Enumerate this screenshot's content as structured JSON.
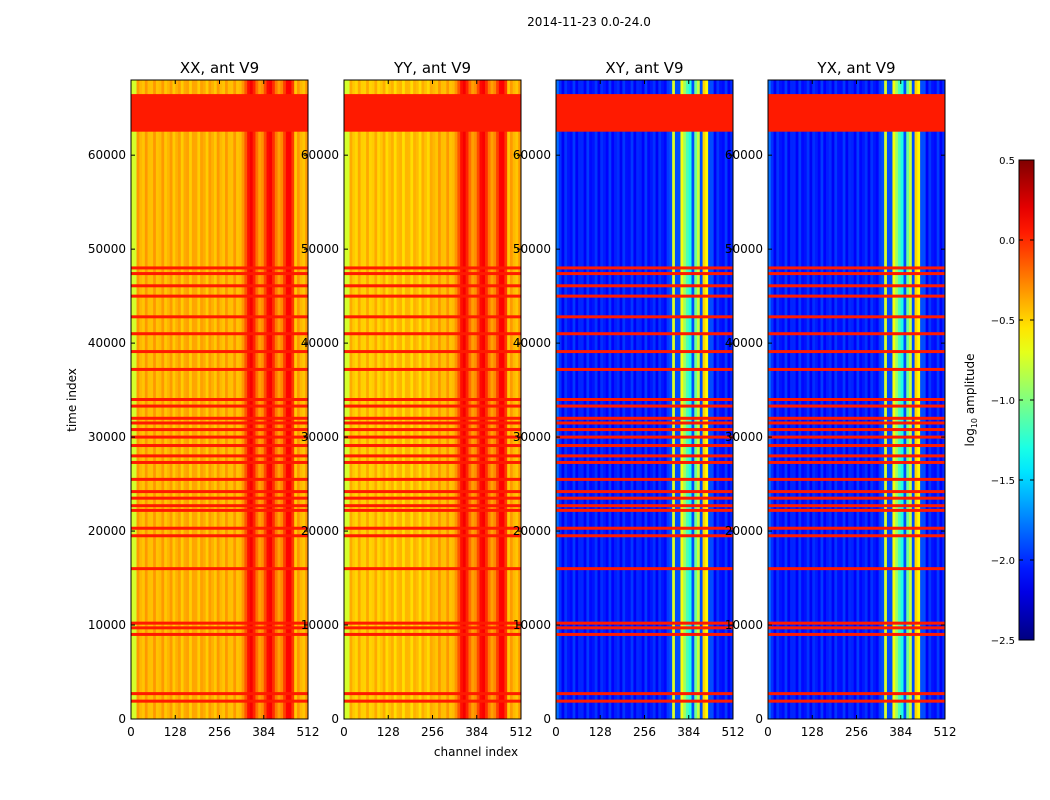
{
  "figure": {
    "suptitle": "2014-11-23 0.0-24.0",
    "xlabel": "channel index",
    "ylabel": "time index"
  },
  "chart_data": {
    "type": "heatmap",
    "panels": [
      {
        "title": "XX, ant V9",
        "style": "parallel"
      },
      {
        "title": "YY, ant V9",
        "style": "parallel"
      },
      {
        "title": "XY, ant V9",
        "style": "cross"
      },
      {
        "title": "YX, ant V9",
        "style": "cross"
      }
    ],
    "x_range": [
      0,
      512
    ],
    "y_range": [
      0,
      68000
    ],
    "x_ticks": [
      0,
      128,
      256,
      384,
      512
    ],
    "y_ticks": [
      0,
      10000,
      20000,
      30000,
      40000,
      50000,
      60000
    ],
    "x_tick_labels": [
      "0",
      "128",
      "256",
      "384",
      "512"
    ],
    "y_tick_labels": [
      "0",
      "10000",
      "20000",
      "30000",
      "40000",
      "50000",
      "60000"
    ],
    "flagged_block": [
      62500,
      66500
    ],
    "flagged_rows": [
      1900,
      2700,
      9000,
      9700,
      10200,
      16000,
      19500,
      20300,
      22200,
      22700,
      23500,
      24200,
      25500,
      27300,
      28000,
      29100,
      30000,
      30800,
      31500,
      32000,
      33300,
      34000,
      37200,
      39100,
      41000,
      42800,
      45000,
      46100,
      47400,
      48000
    ],
    "rfi_channels": [
      [
        335,
        345
      ],
      [
        358,
        372
      ],
      [
        378,
        392
      ],
      [
        402,
        412
      ],
      [
        428,
        438
      ]
    ],
    "colorbar": {
      "label": "log10 amplitude",
      "label_base": "log",
      "label_sub": "10",
      "label_rest": " amplitude",
      "range": [
        -2.5,
        0.5
      ],
      "ticks": [
        0.5,
        0.0,
        -0.5,
        -1.0,
        -1.5,
        -2.0,
        -2.5
      ],
      "tick_labels": [
        "0.5",
        "0.0",
        "−0.5",
        "−1.0",
        "−1.5",
        "−2.0",
        "−2.5"
      ]
    }
  }
}
